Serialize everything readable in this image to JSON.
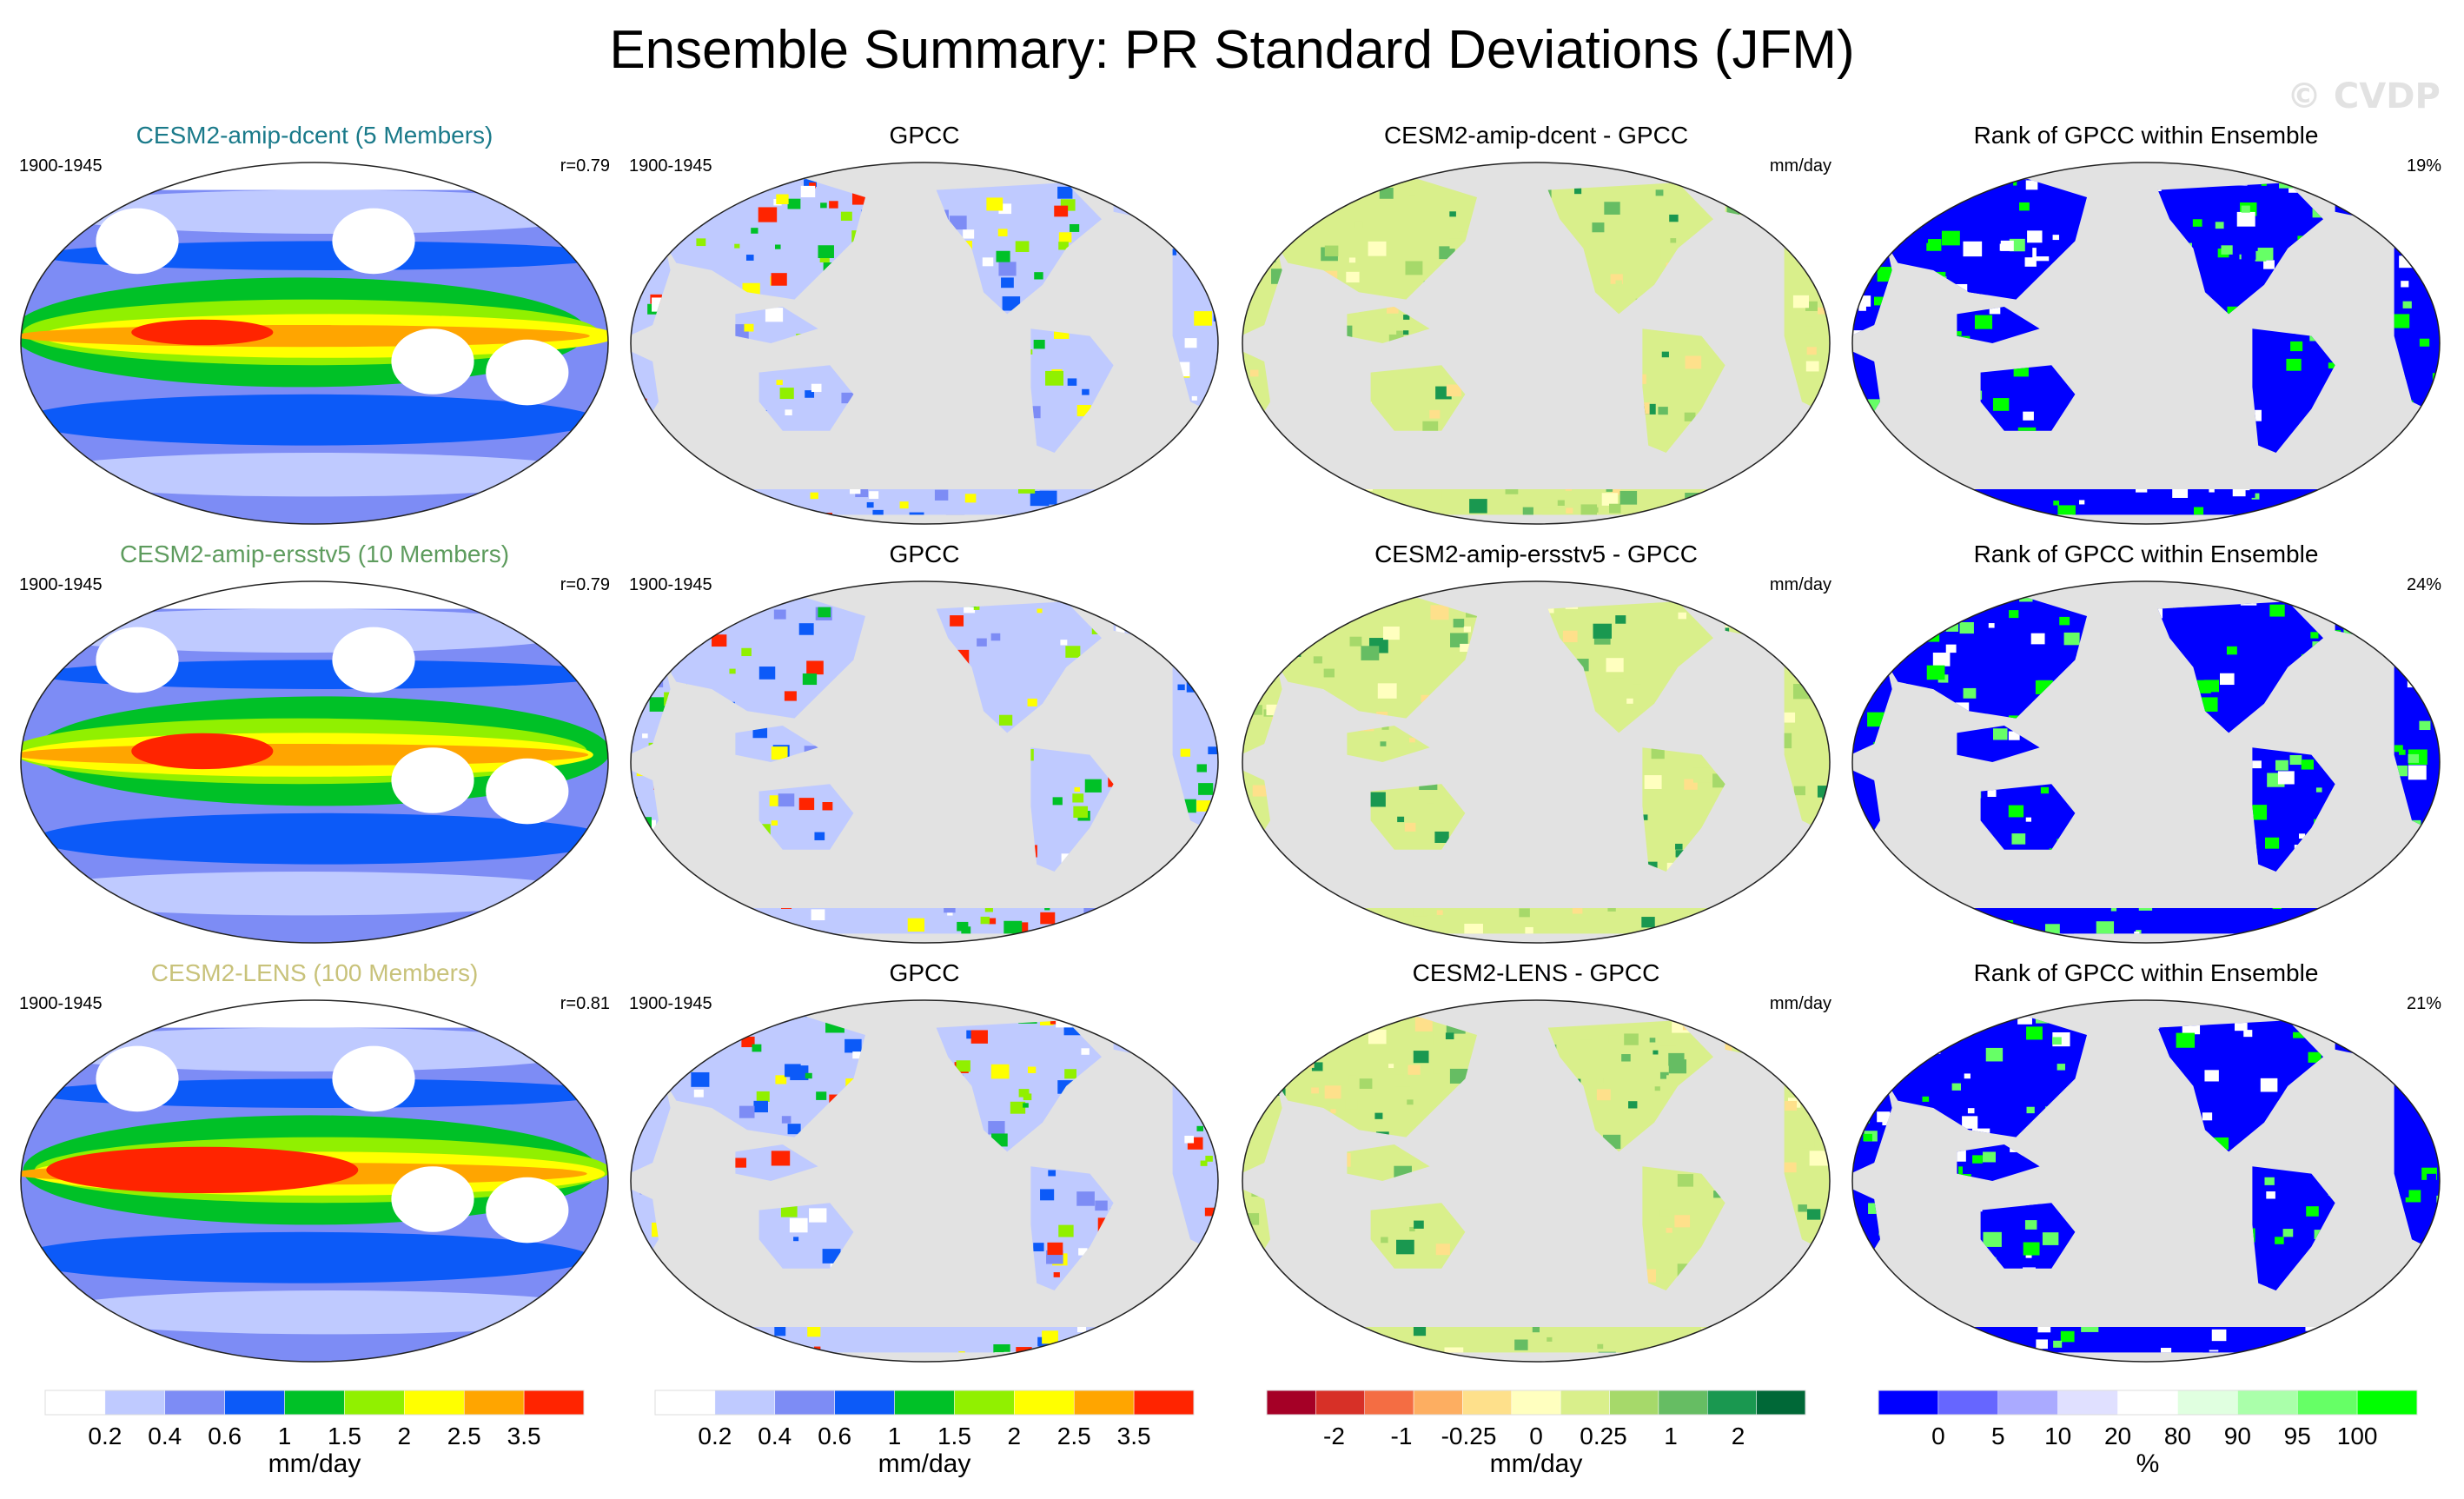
{
  "title": "Ensemble Summary: PR Standard Deviations (JFM)",
  "watermark": "© CVDP",
  "colors": {
    "ocean_gray": "#e2e2e2",
    "stddev_levels": [
      "#ffffff",
      "#bfcaff",
      "#7d8cf5",
      "#0c5af8",
      "#00c127",
      "#91f000",
      "#ffff00",
      "#ffa500",
      "#ff2400"
    ],
    "diff_levels": [
      "#a50026",
      "#d73027",
      "#f46d43",
      "#fdae61",
      "#fee08b",
      "#ffffbf",
      "#d9ef8b",
      "#a6d96a",
      "#66bd63",
      "#1a9850",
      "#006837"
    ],
    "rank_levels": [
      "#0000ff",
      "#6666ff",
      "#aaaaff",
      "#e0e0ff",
      "#ffffff",
      "#e0ffe0",
      "#aaffaa",
      "#66ff66",
      "#00ff00"
    ]
  },
  "chart_data": [
    {
      "row_title": "CESM2-amip-dcent (5 Members)",
      "row_title_color": "#1a7a8a",
      "period": "1900-1945",
      "correlation": "r=0.79",
      "panels": [
        {
          "type": "heatmap",
          "title": "CESM2-amip-dcent (5 Members)",
          "left_label": "1900-1945",
          "right_label": "r=0.79"
        },
        {
          "type": "heatmap",
          "title": "GPCC",
          "left_label": "1900-1945",
          "right_label": ""
        },
        {
          "type": "heatmap",
          "title": "CESM2-amip-dcent - GPCC",
          "left_label": "",
          "right_label": "mm/day"
        },
        {
          "type": "heatmap",
          "title": "Rank of GPCC within Ensemble",
          "left_label": "",
          "right_label": "19%"
        }
      ]
    },
    {
      "row_title": "CESM2-amip-ersstv5 (10 Members)",
      "row_title_color": "#5e9c5e",
      "period": "1900-1945",
      "correlation": "r=0.79",
      "panels": [
        {
          "type": "heatmap",
          "title": "CESM2-amip-ersstv5 (10 Members)",
          "left_label": "1900-1945",
          "right_label": "r=0.79"
        },
        {
          "type": "heatmap",
          "title": "GPCC",
          "left_label": "1900-1945",
          "right_label": ""
        },
        {
          "type": "heatmap",
          "title": "CESM2-amip-ersstv5 - GPCC",
          "left_label": "",
          "right_label": "mm/day"
        },
        {
          "type": "heatmap",
          "title": "Rank of GPCC within Ensemble",
          "left_label": "",
          "right_label": "24%"
        }
      ]
    },
    {
      "row_title": "CESM2-LENS (100 Members)",
      "row_title_color": "#c8c27a",
      "period": "1900-1945",
      "correlation": "r=0.81",
      "panels": [
        {
          "type": "heatmap",
          "title": "CESM2-LENS (100 Members)",
          "left_label": "1900-1945",
          "right_label": "r=0.81"
        },
        {
          "type": "heatmap",
          "title": "GPCC",
          "left_label": "1900-1945",
          "right_label": ""
        },
        {
          "type": "heatmap",
          "title": "CESM2-LENS - GPCC",
          "left_label": "",
          "right_label": "mm/day"
        },
        {
          "type": "heatmap",
          "title": "Rank of GPCC within Ensemble",
          "left_label": "",
          "right_label": "21%"
        }
      ]
    }
  ],
  "colorbars": [
    {
      "name": "model-stddev",
      "unit": "mm/day",
      "ticks": [
        "0.2",
        "0.4",
        "0.6",
        "1",
        "1.5",
        "2",
        "2.5",
        "3.5"
      ],
      "palette": "stddev_levels"
    },
    {
      "name": "gpcc-stddev",
      "unit": "mm/day",
      "ticks": [
        "0.2",
        "0.4",
        "0.6",
        "1",
        "1.5",
        "2",
        "2.5",
        "3.5"
      ],
      "palette": "stddev_levels"
    },
    {
      "name": "difference",
      "unit": "mm/day",
      "ticks": [
        "-2",
        "-1",
        "-0.25",
        "0",
        "0.25",
        "1",
        "2"
      ],
      "palette": "diff_levels"
    },
    {
      "name": "rank",
      "unit": "%",
      "ticks": [
        "0",
        "5",
        "10",
        "20",
        "80",
        "90",
        "95",
        "100"
      ],
      "palette": "rank_levels"
    }
  ]
}
